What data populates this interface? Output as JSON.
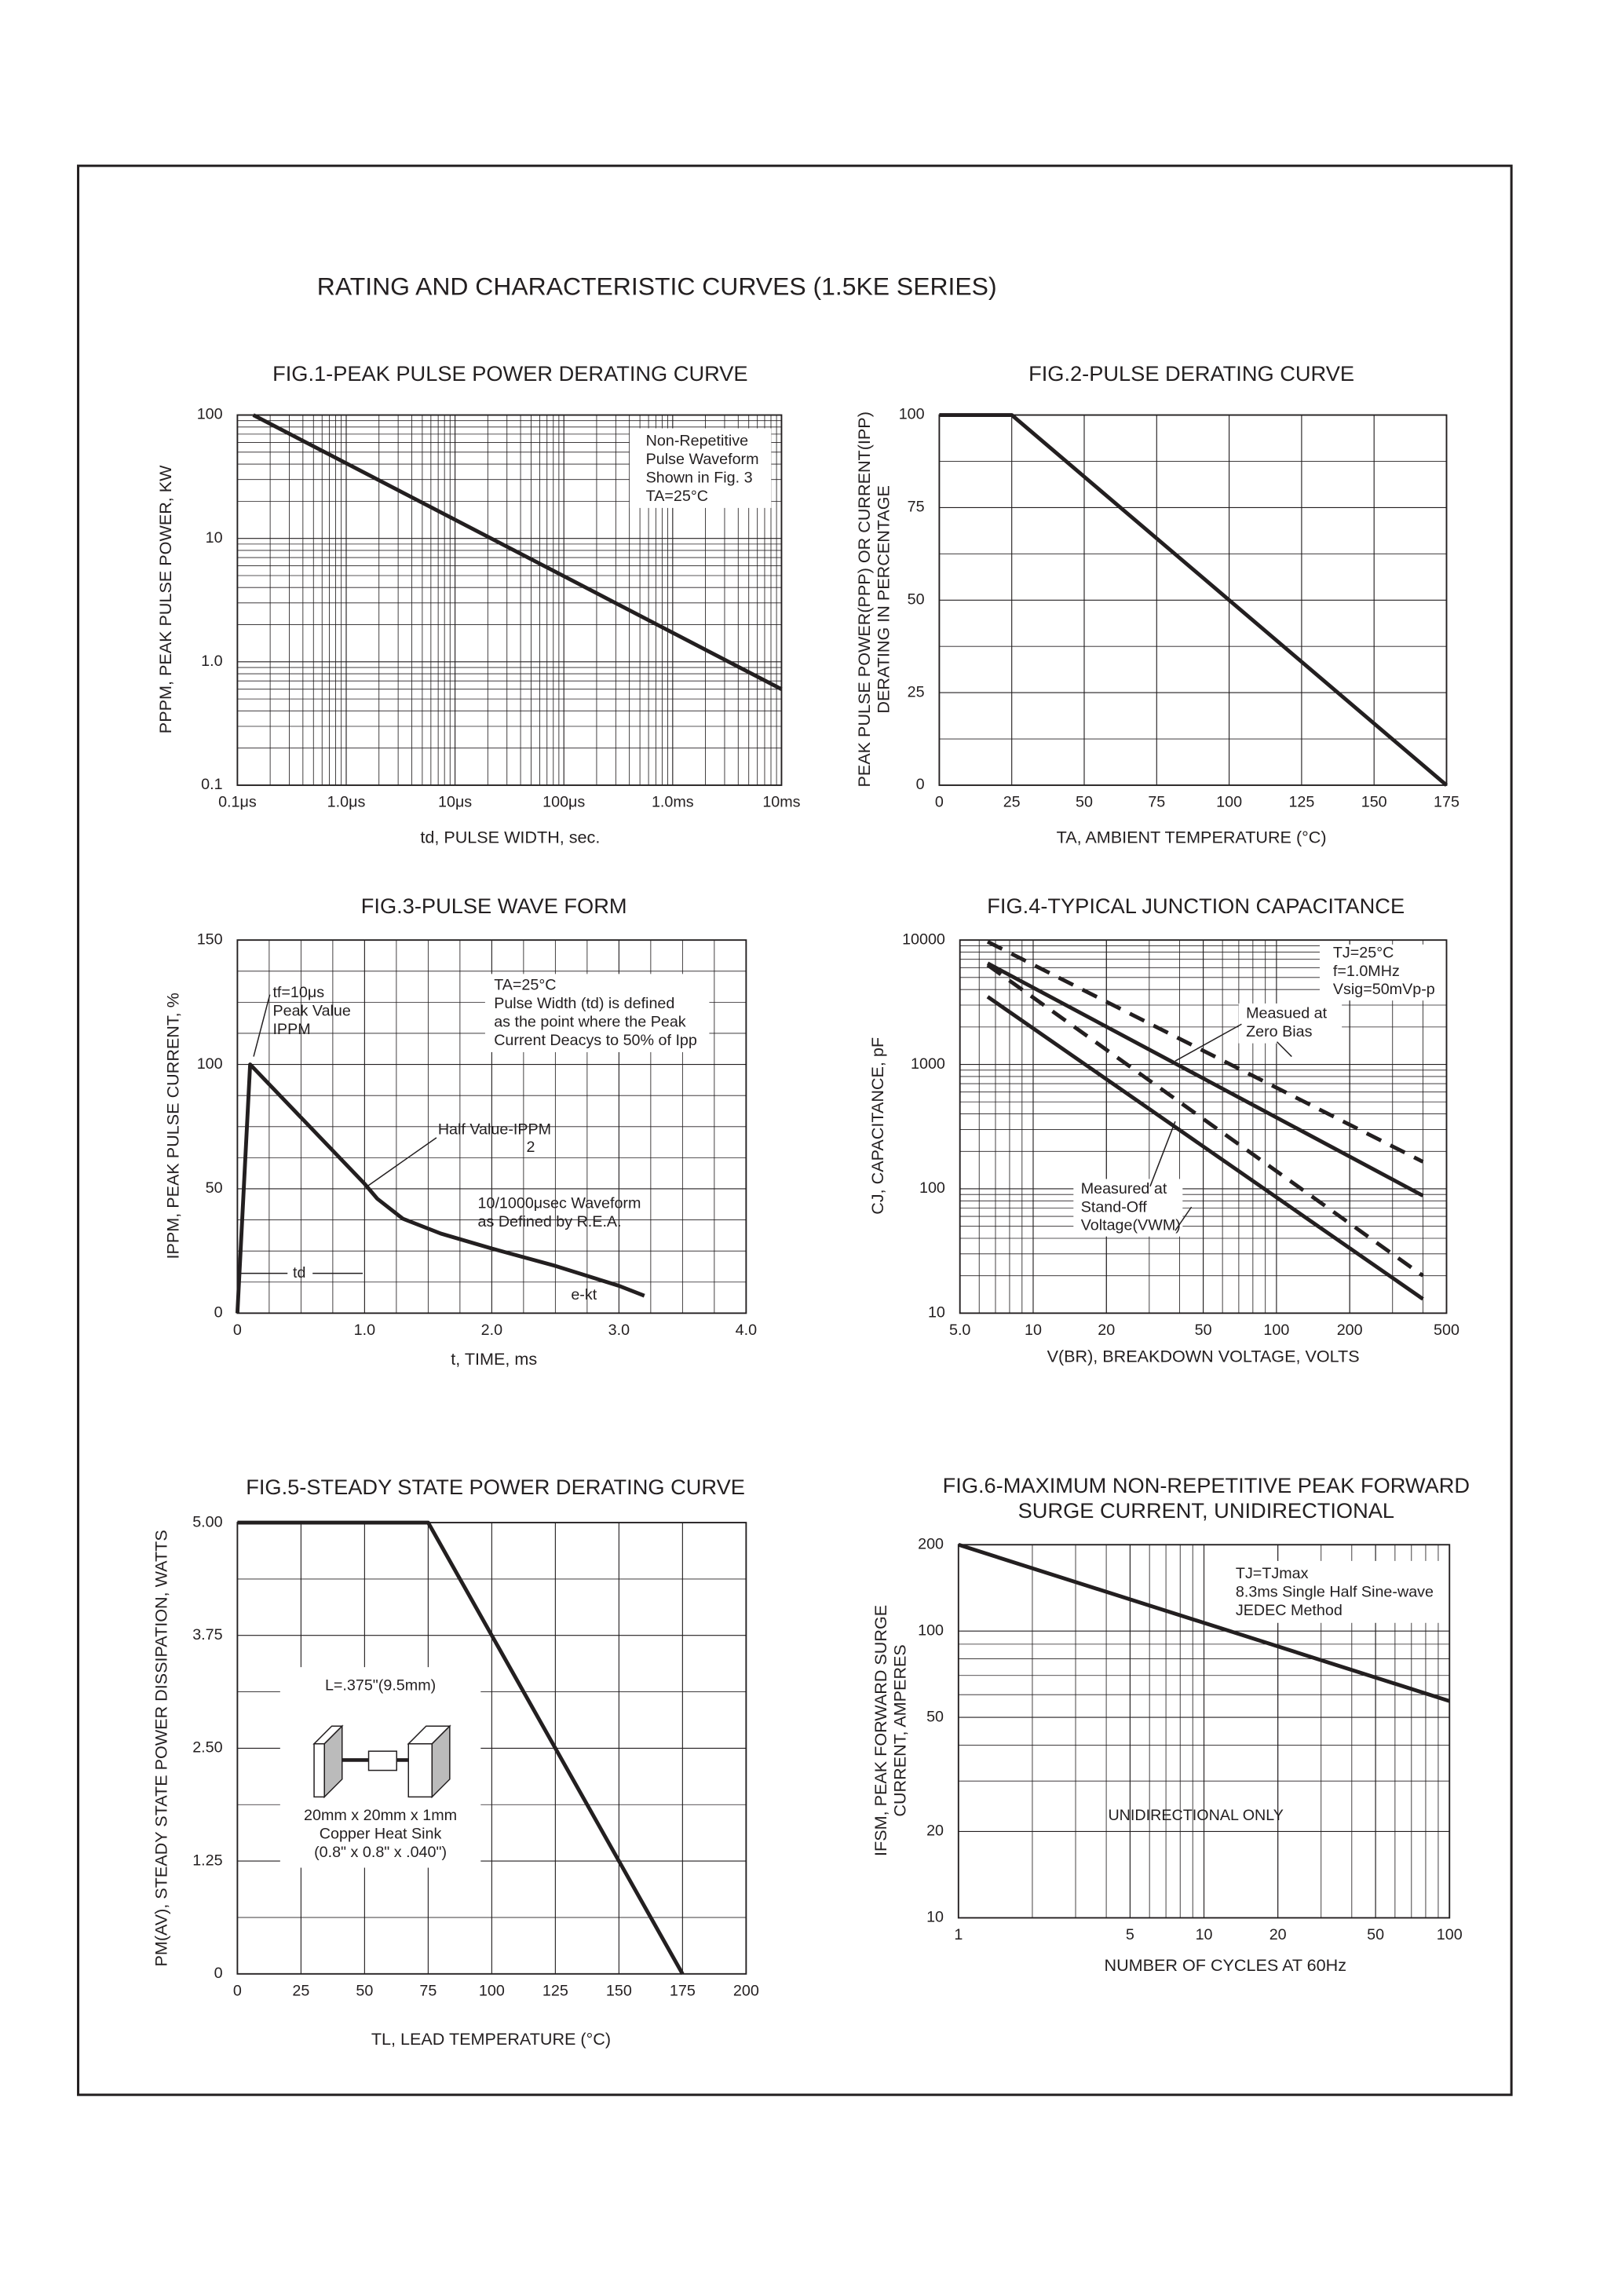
{
  "page_title": "RATING AND CHARACTERISTIC CURVES (1.5KE SERIES)",
  "chart_data": [
    {
      "type": "line",
      "title": "FIG.1-PEAK PULSE POWER DERATING CURVE",
      "xlabel": "td, PULSE WIDTH, sec.",
      "ylabel": "PPPM, PEAK PULSE POWER, KW",
      "xscale": "log",
      "yscale": "log",
      "grid": true,
      "xlim": [
        1e-07,
        0.01
      ],
      "ylim": [
        0.1,
        100
      ],
      "xticks": [
        {
          "value": 1e-07,
          "label": "0.1μs"
        },
        {
          "value": 1e-06,
          "label": "1.0μs"
        },
        {
          "value": 1e-05,
          "label": "10μs"
        },
        {
          "value": 0.0001,
          "label": "100μs"
        },
        {
          "value": 0.001,
          "label": "1.0ms"
        },
        {
          "value": 0.01,
          "label": "10ms"
        }
      ],
      "yticks": [
        0.1,
        {
          "value": 1,
          "label": "1.0"
        },
        10,
        100
      ],
      "series": [
        {
          "color": "#231f20",
          "x": [
            1.4e-07,
            0.01
          ],
          "values": [
            100,
            0.6
          ]
        }
      ],
      "annotations": [
        [
          "Non-Repetitive",
          "Pulse Waveform",
          "Shown in Fig. 3",
          "TA=25°C"
        ]
      ]
    },
    {
      "type": "line",
      "title": "FIG.2-PULSE DERATING CURVE",
      "xlabel": "TA, AMBIENT TEMPERATURE (°C)",
      "ylabel": [
        "PEAK PULSE POWER(PPP) OR CURRENT(IPP)",
        "DERATING IN PERCENTAGE"
      ],
      "xscale": "linear",
      "yscale": "linear",
      "grid": true,
      "xlim": [
        0,
        175
      ],
      "ylim": [
        0,
        100
      ],
      "xticks": [
        0,
        25,
        50,
        75,
        100,
        125,
        150,
        175
      ],
      "yticks": [
        0,
        25,
        50,
        75,
        100
      ],
      "series": [
        {
          "color": "#231f20",
          "x": [
            0,
            25,
            175
          ],
          "values": [
            100,
            100,
            0
          ]
        }
      ],
      "annotations": []
    },
    {
      "type": "line",
      "title": "FIG.3-PULSE WAVE FORM",
      "xlabel": "t, TIME, ms",
      "ylabel": "IPPM, PEAK PULSE CURRENT, %",
      "xscale": "linear",
      "yscale": "linear",
      "grid": true,
      "xlim": [
        0,
        4
      ],
      "ylim": [
        0,
        150
      ],
      "xticks": [
        0,
        {
          "value": 1,
          "label": "1.0"
        },
        {
          "value": 2,
          "label": "2.0"
        },
        {
          "value": 3,
          "label": "3.0"
        },
        {
          "value": 4,
          "label": "4.0"
        }
      ],
      "yticks": [
        0,
        50,
        100,
        150
      ],
      "series": [
        {
          "color": "#231f20",
          "x": [
            0,
            0.1,
            1.0,
            1.1,
            1.3,
            1.6,
            2.0,
            2.5,
            3.0,
            3.2
          ],
          "values": [
            0,
            100,
            52,
            46,
            38,
            32,
            26,
            19,
            11,
            7
          ]
        }
      ],
      "annotations": [
        [
          "tf=10μs",
          "Peak Value",
          "IPPM"
        ],
        [
          "TA=25°C",
          "Pulse Width (td) is defined",
          "as the point where the Peak",
          "Current Deacys to 50% of Ipp"
        ],
        [
          "Half Value-IPPM"
        ],
        [
          "2"
        ],
        [
          "10/1000μsec Waveform",
          "as Defined by R.E.A."
        ],
        [
          "td"
        ],
        [
          "e-kt"
        ]
      ]
    },
    {
      "type": "line",
      "title": "FIG.4-TYPICAL JUNCTION CAPACITANCE",
      "xlabel": "V(BR), BREAKDOWN VOLTAGE, VOLTS",
      "ylabel": "CJ, CAPACITANCE, pF",
      "xscale": "log",
      "yscale": "log",
      "grid": true,
      "xlim": [
        5,
        500
      ],
      "ylim": [
        10,
        10000
      ],
      "xticks": [
        {
          "value": 5,
          "label": "5.0"
        },
        10,
        20,
        50,
        100,
        200,
        500
      ],
      "yticks": [
        10,
        100,
        1000,
        10000
      ],
      "series": [
        {
          "color": "#231f20",
          "dash": false,
          "x": [
            6.5,
            400
          ],
          "values": [
            6500,
            88
          ]
        },
        {
          "color": "#231f20",
          "dash": false,
          "x": [
            6.5,
            400
          ],
          "values": [
            3500,
            13
          ]
        },
        {
          "color": "#231f20",
          "dash": true,
          "x": [
            6.5,
            400
          ],
          "values": [
            9700,
            165
          ]
        },
        {
          "color": "#231f20",
          "dash": true,
          "x": [
            6.5,
            400
          ],
          "values": [
            6300,
            20
          ]
        }
      ],
      "annotations": [
        [
          "TJ=25°C",
          "f=1.0MHz",
          "Vsig=50mVp-p"
        ],
        [
          "Measued at",
          "Zero Bias"
        ],
        [
          "Measured at",
          "Stand-Off",
          "Voltage(VWM)"
        ]
      ]
    },
    {
      "type": "line",
      "title": "FIG.5-STEADY STATE POWER DERATING CURVE",
      "xlabel": "TL, LEAD TEMPERATURE (°C)",
      "ylabel": "PM(AV), STEADY STATE POWER DISSIPATION, WATTS",
      "xscale": "linear",
      "yscale": "linear",
      "grid": true,
      "xlim": [
        0,
        200
      ],
      "ylim": [
        0,
        5
      ],
      "xticks": [
        0,
        25,
        50,
        75,
        100,
        125,
        150,
        175,
        200
      ],
      "yticks": [
        0,
        1.25,
        {
          "value": 2.5,
          "label": "2.50"
        },
        3.75,
        {
          "value": 5,
          "label": "5.00"
        }
      ],
      "series": [
        {
          "color": "#231f20",
          "x": [
            0,
            75,
            175
          ],
          "values": [
            5,
            5,
            0
          ]
        }
      ],
      "annotations": [
        [
          "L=.375\"(9.5mm)"
        ],
        [
          "20mm x 20mm x 1mm",
          "Copper Heat Sink",
          "(0.8\" x 0.8\" x .040\")"
        ]
      ]
    },
    {
      "type": "line",
      "title": [
        "FIG.6-MAXIMUM NON-REPETITIVE PEAK FORWARD",
        "SURGE CURRENT, UNIDIRECTIONAL"
      ],
      "xlabel": "NUMBER OF CYCLES AT 60Hz",
      "ylabel": [
        "IFSM, PEAK FORWARD SURGE",
        "CURRENT, AMPERES"
      ],
      "xscale": "log",
      "yscale": "log",
      "grid": true,
      "xlim": [
        1,
        100
      ],
      "ylim": [
        10,
        200
      ],
      "xticks": [
        1,
        5,
        10,
        20,
        50,
        100
      ],
      "yticks": [
        10,
        20,
        50,
        100,
        200
      ],
      "series": [
        {
          "color": "#231f20",
          "x": [
            1,
            100
          ],
          "values": [
            200,
            57
          ]
        }
      ],
      "annotations": [
        [
          "TJ=TJmax",
          "8.3ms Single Half Sine-wave",
          "JEDEC Method"
        ],
        [
          "UNIDIRECTIONAL ONLY"
        ]
      ]
    }
  ]
}
